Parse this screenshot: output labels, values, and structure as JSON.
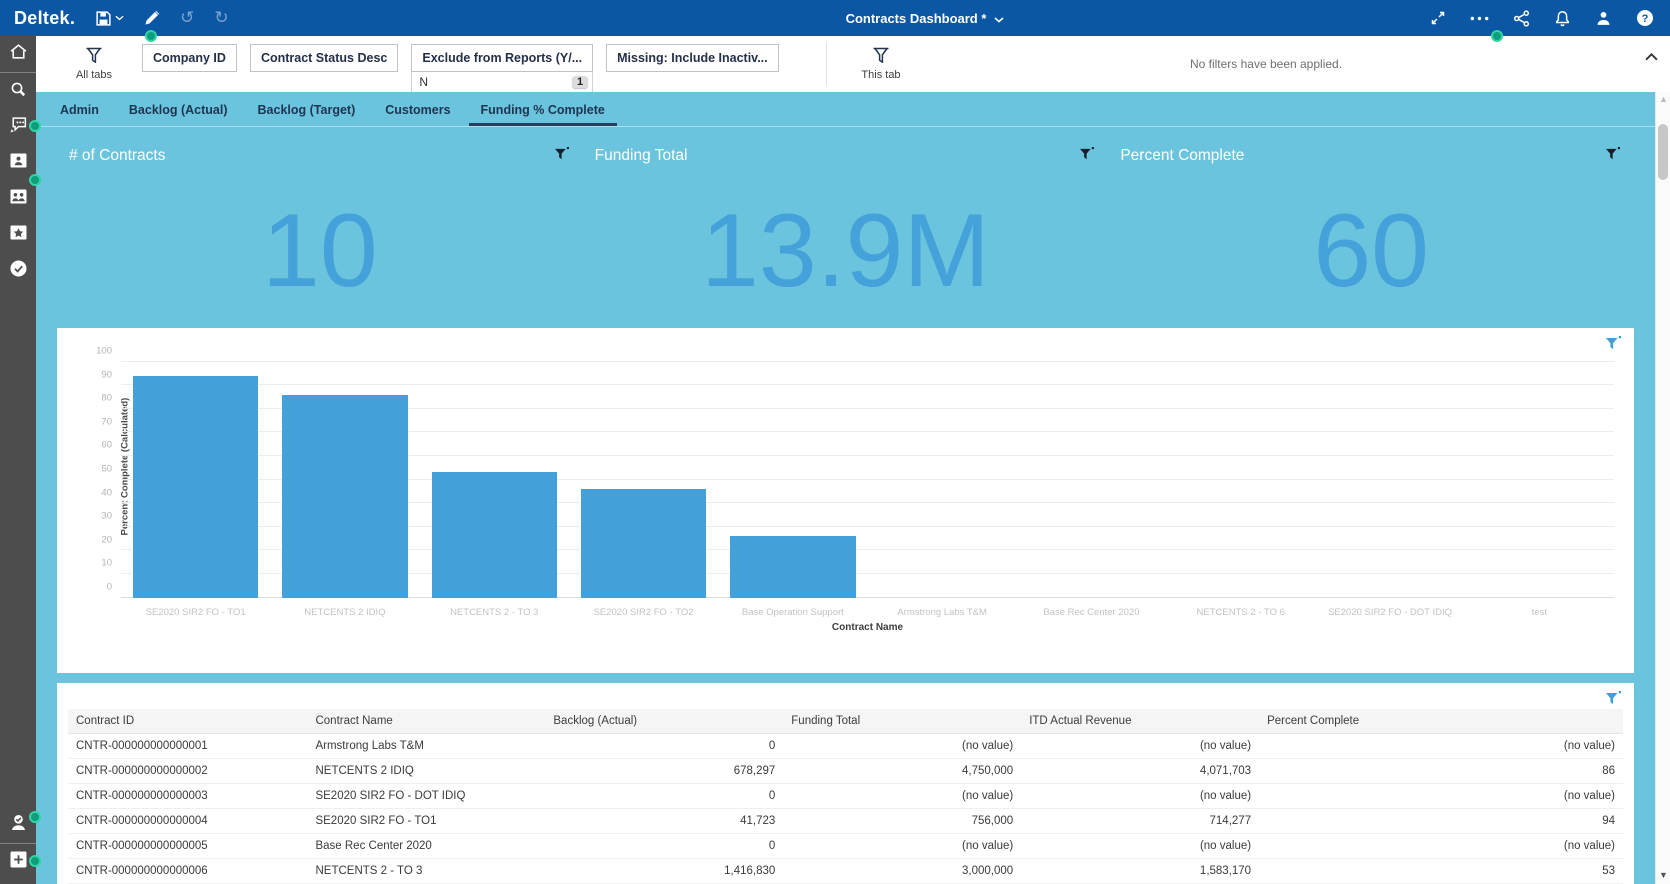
{
  "topbar": {
    "logo": "Deltek.",
    "title": "Contracts Dashboard *",
    "left_icons": [
      "save-icon",
      "save-chevron-down-icon",
      "edit-icon",
      "undo-icon",
      "redo-icon"
    ],
    "right_icons": [
      "expand-icon",
      "more-options-icon",
      "share-icon",
      "notifications-icon",
      "user-icon",
      "help-icon"
    ]
  },
  "sidebar": {
    "top_icons": [
      "home-icon",
      "search-icon",
      "feedback-icon",
      "personal-items-icon",
      "shared-items-icon",
      "favorites-icon",
      "insights-icon"
    ],
    "bottom_icons": [
      "user-check-icon",
      "add-icon"
    ]
  },
  "filter_bar": {
    "all_tabs_label": "All tabs",
    "this_tab_label": "This tab",
    "no_filters_message": "No filters have been applied.",
    "chips": [
      {
        "label": "Company ID"
      },
      {
        "label": "Contract Status Desc"
      },
      {
        "label": "Exclude from Reports (Y/...",
        "value": "N",
        "count": "1"
      },
      {
        "label": "Missing: Include Inactiv..."
      }
    ]
  },
  "tabs": {
    "items": [
      "Admin",
      "Backlog (Actual)",
      "Backlog (Target)",
      "Customers",
      "Funding % Complete"
    ],
    "active": "Funding % Complete"
  },
  "kpis": [
    {
      "title": "# of Contracts",
      "value": "10"
    },
    {
      "title": "Funding Total",
      "value": "13.9M"
    },
    {
      "title": "Percent Complete",
      "value": "60"
    }
  ],
  "chart_data": {
    "type": "bar",
    "title": "",
    "xlabel": "Contract Name",
    "ylabel": "Percent Complete (Calculated)",
    "ylim": [
      0,
      100
    ],
    "y_ticks": [
      0,
      10,
      20,
      30,
      40,
      50,
      60,
      70,
      80,
      90,
      100
    ],
    "grid": true,
    "legend_position": "none",
    "categories": [
      "SE2020 SIR2 FO - TO1",
      "NETCENTS 2 IDIQ",
      "NETCENTS 2 - TO 3",
      "SE2020 SIR2 FO - TO2",
      "Base Operation Support",
      "Armstrong Labs T&M",
      "Base Rec Center 2020",
      "NETCENTS 2 - TO 6",
      "SE2020 SIR2 FO - DOT IDIQ",
      "test"
    ],
    "values": [
      94,
      86,
      53,
      46,
      26,
      0,
      0,
      0,
      0,
      0
    ],
    "bar_color": "#44a0d8"
  },
  "table": {
    "columns": [
      "Contract ID",
      "Contract Name",
      "Backlog (Actual)",
      "Funding Total",
      "ITD Actual Revenue",
      "Percent Complete"
    ],
    "align": [
      "left",
      "left",
      "right",
      "right",
      "right",
      "right"
    ],
    "rows": [
      [
        "CNTR-000000000000001",
        "Armstrong Labs T&M",
        "0",
        "(no value)",
        "(no value)",
        "(no value)"
      ],
      [
        "CNTR-000000000000002",
        "NETCENTS 2 IDIQ",
        "678,297",
        "4,750,000",
        "4,071,703",
        "86"
      ],
      [
        "CNTR-000000000000003",
        "SE2020 SIR2 FO - DOT IDIQ",
        "0",
        "(no value)",
        "(no value)",
        "(no value)"
      ],
      [
        "CNTR-000000000000004",
        "SE2020 SIR2 FO - TO1",
        "41,723",
        "756,000",
        "714,277",
        "94"
      ],
      [
        "CNTR-000000000000005",
        "Base Rec Center 2020",
        "0",
        "(no value)",
        "(no value)",
        "(no value)"
      ],
      [
        "CNTR-000000000000006",
        "NETCENTS 2 - TO 3",
        "1,416,830",
        "3,000,000",
        "1,583,170",
        "53"
      ]
    ]
  },
  "colors": {
    "topbar_blue": "#0b57a4",
    "sidebar_gray": "#4d4d4d",
    "content_light_blue": "#6ac4dd",
    "accent_blue": "#44a0d8",
    "badge_green": "#0f9d7d",
    "tab_navy": "#1d3550"
  }
}
